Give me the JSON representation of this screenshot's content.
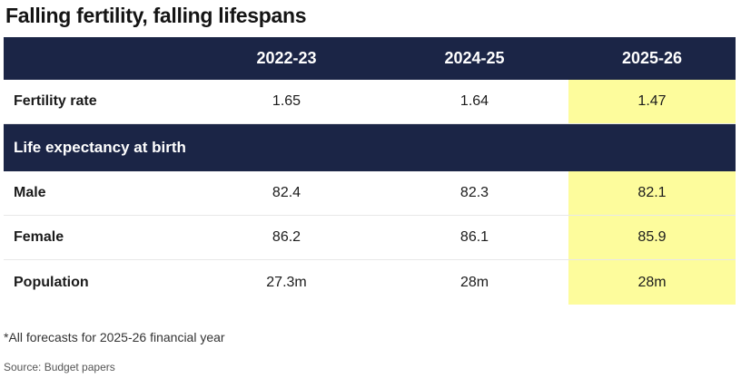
{
  "title": "Falling fertility, falling lifespans",
  "footnote": "*All forecasts for 2025-26 financial year",
  "source": "Source: Budget papers",
  "colors": {
    "header_bg": "#1b2546",
    "highlight": "#fdfc9c"
  },
  "chart_data": {
    "type": "table",
    "title": "Falling fertility, falling lifespans",
    "columns": [
      "2022-23",
      "2024-25",
      "2025-26"
    ],
    "highlighted_column": "2025-26",
    "rows": [
      {
        "label": "Fertility rate",
        "values": [
          "1.65",
          "1.64",
          "1.47"
        ]
      },
      {
        "section": "Life expectancy at birth"
      },
      {
        "label": "Male",
        "values": [
          "82.4",
          "82.3",
          "82.1"
        ]
      },
      {
        "label": "Female",
        "values": [
          "86.2",
          "86.1",
          "85.9"
        ]
      },
      {
        "label": "Population",
        "values": [
          "27.3m",
          "28m",
          "28m"
        ]
      }
    ]
  }
}
